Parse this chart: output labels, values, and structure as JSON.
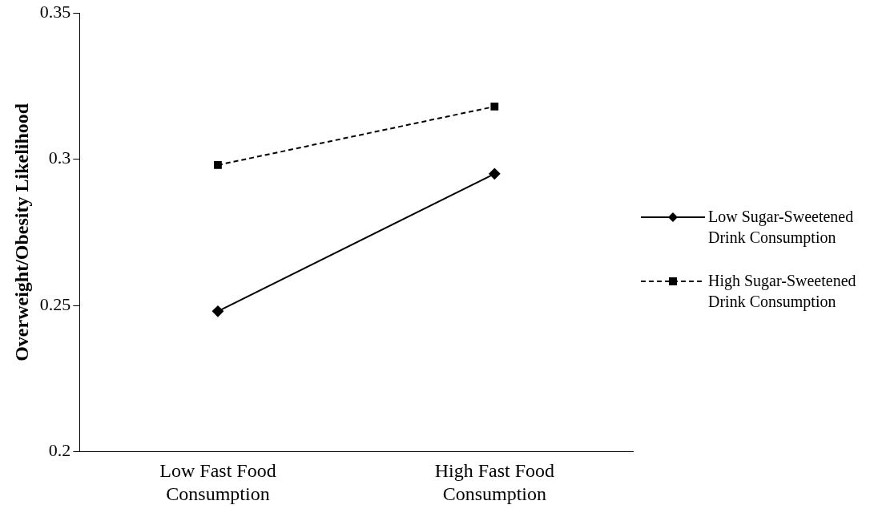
{
  "chart_data": {
    "type": "line",
    "ylabel": "Overweight/Obesity Likelihood",
    "categories": [
      "Low Fast Food Consumption",
      "High Fast Food Consumption"
    ],
    "series": [
      {
        "name": "Low Sugar-Sweetened Drink Consumption",
        "color": "#000000",
        "values": [
          0.248,
          0.295
        ],
        "marker": "diamond",
        "line_style": "solid"
      },
      {
        "name": "High Sugar-Sweetened Drink Consumption",
        "color": "#000000",
        "values": [
          0.298,
          0.318
        ],
        "marker": "square",
        "line_style": "dashed"
      }
    ],
    "ylim": [
      0.2,
      0.35
    ],
    "yticks": [
      0.2,
      0.25,
      0.3,
      0.35
    ],
    "grid": false,
    "legend": "right"
  }
}
